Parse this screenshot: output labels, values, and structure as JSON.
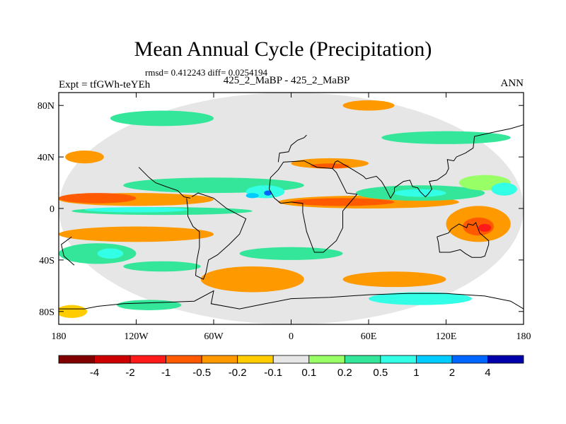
{
  "chart_data": {
    "type": "heatmap",
    "title": "Mean Annual Cycle (Precipitation)",
    "stats": "rmsd= 0.412243 diff= 0.0254194",
    "experiment": "Expt = tfGWh-teYEh",
    "comparison": "425_2_MaBP - 425_2_MaBP",
    "season": "ANN",
    "xlim": [
      -180,
      180
    ],
    "ylim": [
      -90,
      90
    ],
    "x_ticks": [
      {
        "value": -180,
        "label": "180"
      },
      {
        "value": -120,
        "label": "120W"
      },
      {
        "value": -60,
        "label": "60W"
      },
      {
        "value": 0,
        "label": "0"
      },
      {
        "value": 60,
        "label": "60E"
      },
      {
        "value": 120,
        "label": "120E"
      },
      {
        "value": 180,
        "label": "180"
      }
    ],
    "y_ticks": [
      {
        "value": 80,
        "label": "80N"
      },
      {
        "value": 40,
        "label": "40N"
      },
      {
        "value": 0,
        "label": "0"
      },
      {
        "value": -40,
        "label": "40S"
      },
      {
        "value": -80,
        "label": "80S"
      }
    ],
    "levels": [
      -4,
      -2,
      -1,
      -0.5,
      -0.2,
      -0.1,
      0.1,
      0.2,
      0.5,
      1,
      2,
      4
    ],
    "level_labels": [
      "-4",
      "-2",
      "-1",
      "-0.5",
      "-0.2",
      "-0.1",
      "0.1",
      "0.2",
      "0.5",
      "1",
      "2",
      "4"
    ],
    "colors": [
      "#800000",
      "#cc0000",
      "#ff1a1a",
      "#ff5a00",
      "#ff9900",
      "#ffcc00",
      "#e6e6e6",
      "#99ff66",
      "#33e699",
      "#33ffe6",
      "#00ccff",
      "#0066ff",
      "#0000aa"
    ],
    "regions": [
      {
        "bin": 6,
        "lon": 0,
        "lat": 0,
        "rlon": 180,
        "rlat": 90
      },
      {
        "bin": 4,
        "lon": -120,
        "lat": 7,
        "rlon": 60,
        "rlat": 5
      },
      {
        "bin": 3,
        "lon": -150,
        "lat": 8,
        "rlon": 30,
        "rlat": 4
      },
      {
        "bin": 4,
        "lon": 60,
        "lat": 5,
        "rlon": 70,
        "rlat": 5
      },
      {
        "bin": 3,
        "lon": 40,
        "lat": 5,
        "rlon": 40,
        "rlat": 3
      },
      {
        "bin": 8,
        "lon": -100,
        "lat": -2,
        "rlon": 70,
        "rlat": 3
      },
      {
        "bin": 9,
        "lon": -120,
        "lat": -1,
        "rlon": 40,
        "rlat": 2
      },
      {
        "bin": 8,
        "lon": -60,
        "lat": 18,
        "rlon": 70,
        "rlat": 6
      },
      {
        "bin": 9,
        "lon": -20,
        "lat": 13,
        "rlon": 15,
        "rlat": 5
      },
      {
        "bin": 10,
        "lon": -30,
        "lat": 10,
        "rlon": 5,
        "rlat": 2
      },
      {
        "bin": 11,
        "lon": -18,
        "lat": 12,
        "rlon": 3,
        "rlat": 2
      },
      {
        "bin": 8,
        "lon": 100,
        "lat": 12,
        "rlon": 50,
        "rlat": 6
      },
      {
        "bin": 9,
        "lon": 100,
        "lat": 12,
        "rlon": 20,
        "rlat": 3
      },
      {
        "bin": 7,
        "lon": 150,
        "lat": 20,
        "rlon": 20,
        "rlat": 6
      },
      {
        "bin": 9,
        "lon": 165,
        "lat": 15,
        "rlon": 10,
        "rlat": 5
      },
      {
        "bin": 4,
        "lon": 30,
        "lat": 35,
        "rlon": 30,
        "rlat": 4
      },
      {
        "bin": 3,
        "lon": 30,
        "lat": 33,
        "rlon": 15,
        "rlat": 2
      },
      {
        "bin": 4,
        "lon": 145,
        "lat": -12,
        "rlon": 25,
        "rlat": 14
      },
      {
        "bin": 3,
        "lon": 145,
        "lat": -14,
        "rlon": 12,
        "rlat": 7
      },
      {
        "bin": 2,
        "lon": 150,
        "lat": -15,
        "rlon": 5,
        "rlat": 3
      },
      {
        "bin": 4,
        "lon": -120,
        "lat": -20,
        "rlon": 60,
        "rlat": 6
      },
      {
        "bin": 4,
        "lon": -30,
        "lat": -55,
        "rlon": 40,
        "rlat": 10
      },
      {
        "bin": 4,
        "lon": -160,
        "lat": 40,
        "rlon": 15,
        "rlat": 5
      },
      {
        "bin": 8,
        "lon": -150,
        "lat": -35,
        "rlon": 30,
        "rlat": 8
      },
      {
        "bin": 9,
        "lon": -140,
        "lat": -35,
        "rlon": 10,
        "rlat": 4
      },
      {
        "bin": 8,
        "lon": 120,
        "lat": 55,
        "rlon": 50,
        "rlat": 5
      },
      {
        "bin": 8,
        "lon": -100,
        "lat": 70,
        "rlon": 40,
        "rlat": 6
      },
      {
        "bin": 8,
        "lon": 0,
        "lat": -35,
        "rlon": 40,
        "rlat": 5
      },
      {
        "bin": 8,
        "lon": -100,
        "lat": -45,
        "rlon": 30,
        "rlat": 4
      },
      {
        "bin": 4,
        "lon": 80,
        "lat": -55,
        "rlon": 40,
        "rlat": 6
      },
      {
        "bin": 5,
        "lon": -170,
        "lat": -80,
        "rlon": 12,
        "rlat": 5
      },
      {
        "bin": 4,
        "lon": 60,
        "lat": 80,
        "rlon": 20,
        "rlat": 4
      },
      {
        "bin": 9,
        "lon": 100,
        "lat": -70,
        "rlon": 40,
        "rlat": 5
      },
      {
        "bin": 8,
        "lon": -110,
        "lat": -75,
        "rlon": 25,
        "rlat": 4
      }
    ],
    "coastlines": [
      [
        [
          -118,
          32
        ],
        [
          -110,
          24
        ],
        [
          -105,
          20
        ],
        [
          -97,
          17
        ],
        [
          -88,
          14
        ],
        [
          -83,
          9
        ],
        [
          -78,
          8
        ]
      ],
      [
        [
          -81,
          8
        ],
        [
          -80,
          0
        ],
        [
          -80,
          -6
        ],
        [
          -76,
          -14
        ],
        [
          -71,
          -18
        ],
        [
          -71,
          -30
        ],
        [
          -73,
          -40
        ],
        [
          -74,
          -52
        ],
        [
          -68,
          -55
        ],
        [
          -66,
          -50
        ],
        [
          -64,
          -40
        ],
        [
          -57,
          -36
        ],
        [
          -48,
          -28
        ],
        [
          -40,
          -20
        ],
        [
          -35,
          -8
        ],
        [
          -50,
          0
        ],
        [
          -60,
          8
        ],
        [
          -72,
          12
        ],
        [
          -77,
          9
        ]
      ],
      [
        [
          -17,
          15
        ],
        [
          -16,
          24
        ],
        [
          -10,
          30
        ],
        [
          -6,
          36
        ],
        [
          10,
          37
        ],
        [
          20,
          32
        ],
        [
          32,
          31
        ],
        [
          35,
          28
        ],
        [
          43,
          12
        ],
        [
          51,
          11
        ],
        [
          40,
          -2
        ],
        [
          40,
          -15
        ],
        [
          35,
          -25
        ],
        [
          25,
          -34
        ],
        [
          18,
          -34
        ],
        [
          12,
          -18
        ],
        [
          9,
          -3
        ],
        [
          9,
          4
        ],
        [
          0,
          5
        ],
        [
          -8,
          4
        ],
        [
          -13,
          8
        ],
        [
          -17,
          15
        ]
      ],
      [
        [
          -10,
          36
        ],
        [
          -9,
          43
        ],
        [
          -2,
          44
        ],
        [
          0,
          49
        ],
        [
          5,
          53
        ],
        [
          10,
          55
        ],
        [
          12,
          57
        ]
      ],
      [
        [
          32,
          31
        ],
        [
          34,
          36
        ],
        [
          36,
          37
        ],
        [
          48,
          30
        ],
        [
          56,
          25
        ],
        [
          58,
          23
        ],
        [
          66,
          25
        ],
        [
          70,
          21
        ],
        [
          73,
          16
        ],
        [
          77,
          8
        ],
        [
          80,
          13
        ],
        [
          80,
          16
        ],
        [
          87,
          21
        ],
        [
          92,
          22
        ],
        [
          94,
          17
        ],
        [
          98,
          16
        ],
        [
          100,
          13
        ],
        [
          104,
          9
        ],
        [
          106,
          11
        ],
        [
          109,
          15
        ],
        [
          107,
          21
        ],
        [
          113,
          22
        ],
        [
          120,
          27
        ],
        [
          122,
          31
        ],
        [
          121,
          38
        ],
        [
          126,
          37
        ],
        [
          128,
          40
        ],
        [
          135,
          43
        ],
        [
          141,
          47
        ],
        [
          142,
          56
        ],
        [
          160,
          60
        ],
        [
          170,
          62
        ],
        [
          180,
          65
        ]
      ],
      [
        [
          113,
          -22
        ],
        [
          114,
          -26
        ],
        [
          115,
          -34
        ],
        [
          123,
          -34
        ],
        [
          131,
          -32
        ],
        [
          135,
          -35
        ],
        [
          140,
          -38
        ],
        [
          147,
          -38
        ],
        [
          150,
          -37
        ],
        [
          153,
          -28
        ],
        [
          153,
          -25
        ],
        [
          146,
          -19
        ],
        [
          143,
          -11
        ],
        [
          141,
          -13
        ],
        [
          137,
          -12
        ],
        [
          136,
          -15
        ],
        [
          130,
          -12
        ],
        [
          124,
          -16
        ],
        [
          122,
          -19
        ],
        [
          113,
          -22
        ]
      ],
      [
        [
          -180,
          -78
        ],
        [
          -160,
          -78
        ],
        [
          -150,
          -76
        ],
        [
          -130,
          -74
        ],
        [
          -100,
          -73
        ],
        [
          -75,
          -72
        ],
        [
          -60,
          -64
        ],
        [
          -62,
          -74
        ],
        [
          -40,
          -78
        ],
        [
          -20,
          -74
        ],
        [
          0,
          -70
        ],
        [
          30,
          -69
        ],
        [
          60,
          -67
        ],
        [
          90,
          -66
        ],
        [
          120,
          -66
        ],
        [
          150,
          -68
        ],
        [
          170,
          -72
        ],
        [
          180,
          -78
        ]
      ],
      [
        [
          -170,
          -22
        ],
        [
          -178,
          -28
        ],
        [
          -176,
          -37
        ],
        [
          -168,
          -44
        ]
      ]
    ]
  }
}
